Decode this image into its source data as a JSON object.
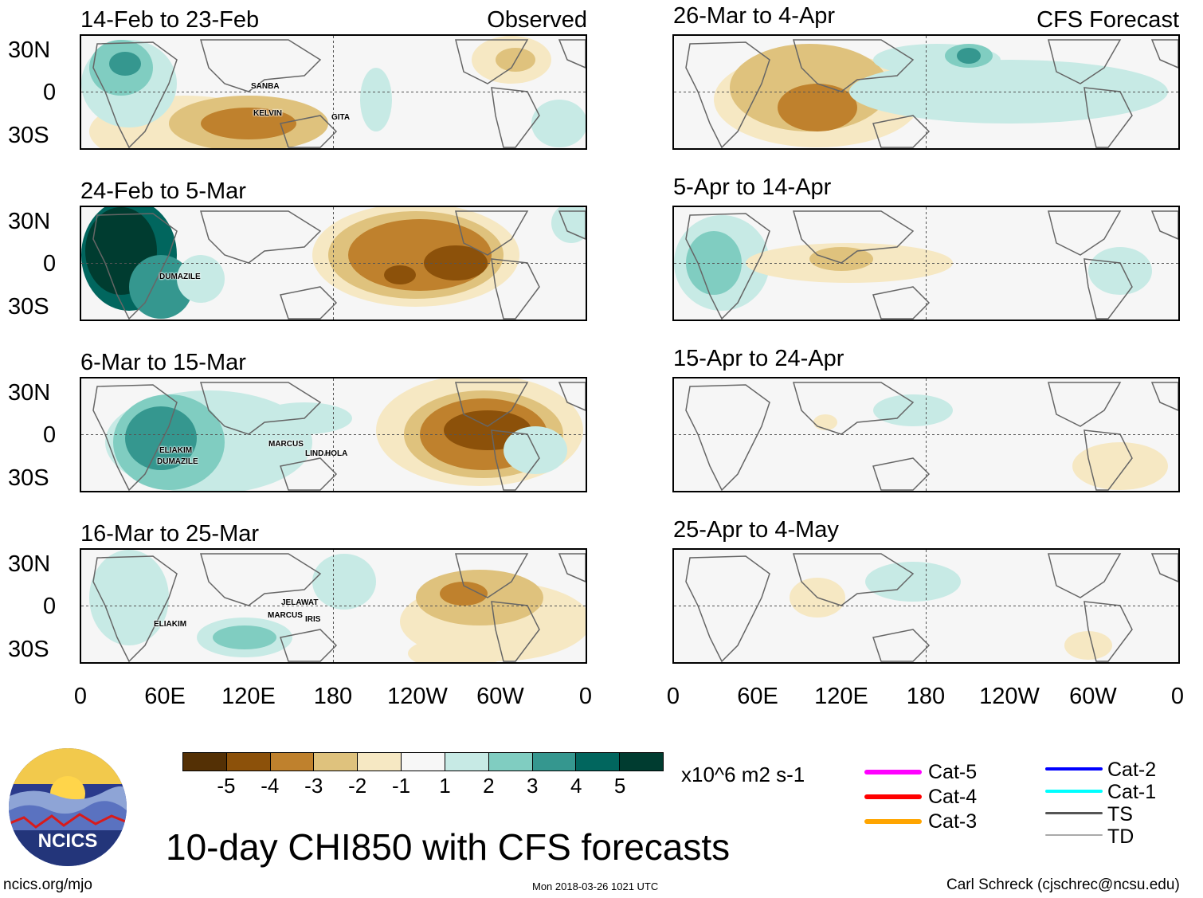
{
  "figure": {
    "title": "10-day CHI850 with CFS forecasts",
    "colorbar_units": "x10^6 m2 s-1",
    "colorbar_labels": [
      "-5",
      "-4",
      "-3",
      "-2",
      "-1",
      "1",
      "2",
      "3",
      "4",
      "5"
    ],
    "colorbar_colors": [
      "#543005",
      "#8c510a",
      "#bf812d",
      "#dfc27d",
      "#f6e8c3",
      "#f7f7f7",
      "#c7eae5",
      "#80cdc1",
      "#35978f",
      "#01665e",
      "#003c30"
    ],
    "lon_labels": [
      "0",
      "60E",
      "120E",
      "180",
      "120W",
      "60W",
      "0"
    ],
    "lat_labels": [
      "30N",
      "0",
      "30S"
    ]
  },
  "columns": {
    "observed_label": "Observed",
    "forecast_label": "CFS Forecast"
  },
  "observed_panels": [
    {
      "period": "14-Feb to 23-Feb",
      "storms": [
        "SANBA",
        "KELVIN",
        "GITA"
      ]
    },
    {
      "period": "24-Feb to 5-Mar",
      "storms": [
        "DUMAZILE"
      ]
    },
    {
      "period": "6-Mar to 15-Mar",
      "storms": [
        "ELIAKIM",
        "DUMAZILE",
        "MARCUS",
        "LINDA",
        "HOLA"
      ]
    },
    {
      "period": "16-Mar to 25-Mar",
      "storms": [
        "ELIAKIM",
        "JELAWAT",
        "MARCUS",
        "IRIS"
      ]
    }
  ],
  "forecast_panels": [
    {
      "period": "26-Mar to 4-Apr"
    },
    {
      "period": "5-Apr to 14-Apr"
    },
    {
      "period": "15-Apr to 24-Apr"
    },
    {
      "period": "25-Apr to 4-May"
    }
  ],
  "track_legend": [
    {
      "label": "Cat-5",
      "color": "#ff00ff"
    },
    {
      "label": "Cat-4",
      "color": "#ff0000"
    },
    {
      "label": "Cat-3",
      "color": "#ffa500"
    },
    {
      "label": "Cat-2",
      "color": "#0000ff"
    },
    {
      "label": "Cat-1",
      "color": "#00ffff"
    },
    {
      "label": "TS",
      "color": "#555555"
    },
    {
      "label": "TD",
      "color": "#aaaaaa"
    }
  ],
  "logo": {
    "text": "NCICS"
  },
  "footer": {
    "url": "ncics.org/mjo",
    "timestamp": "Mon 2018-03-26 1021 UTC",
    "credit": "Carl Schreck (cjschrec@ncsu.edu)"
  }
}
